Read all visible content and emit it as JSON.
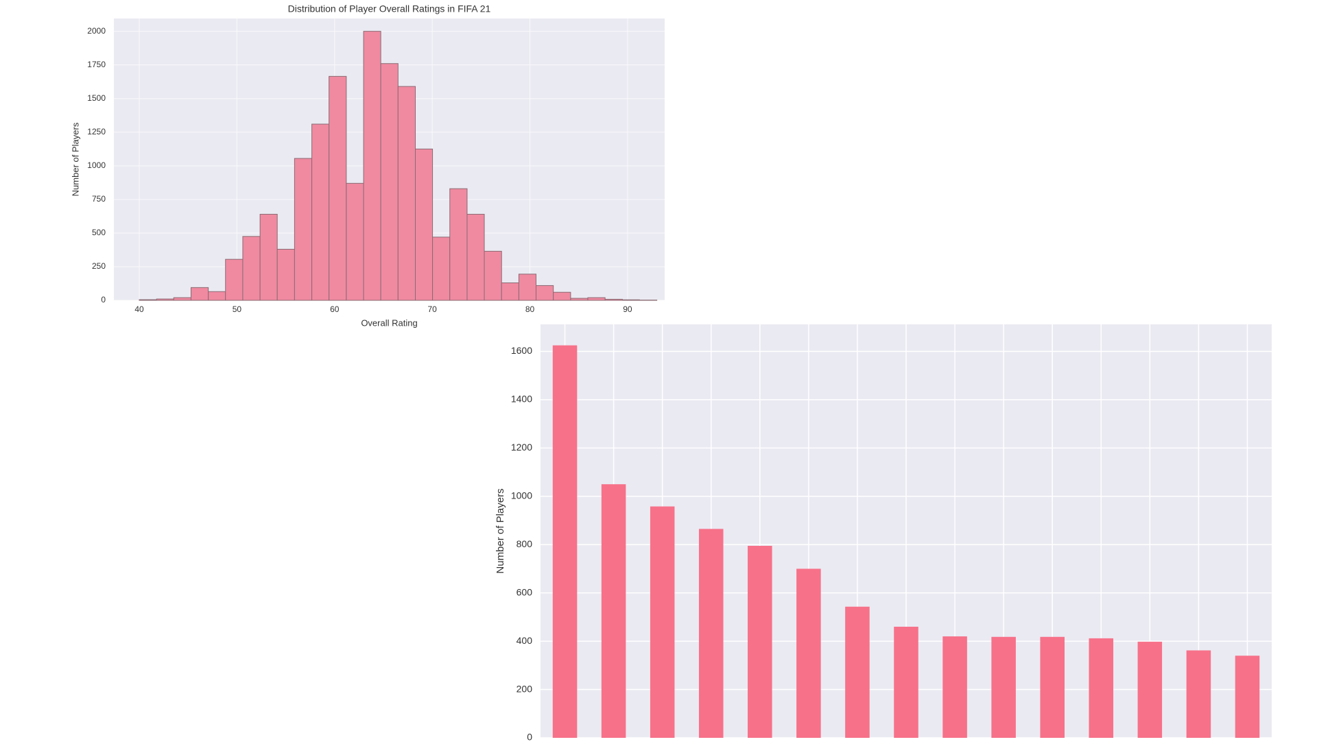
{
  "chart_data": [
    {
      "type": "histogram",
      "title": "Distribution of Player Overall Ratings in FIFA 21",
      "xlabel": "Overall Rating",
      "ylabel": "Number of Players",
      "bins": [
        40,
        41.77,
        43.53,
        45.3,
        47.07,
        48.83,
        50.6,
        52.37,
        54.13,
        55.9,
        57.67,
        59.43,
        61.2,
        62.97,
        64.73,
        66.5,
        68.27,
        70.03,
        71.8,
        73.57,
        75.33,
        77.1,
        78.87,
        80.63,
        82.4,
        84.17,
        85.93,
        87.7,
        89.47,
        91.23,
        93
      ],
      "counts": [
        5,
        10,
        20,
        95,
        65,
        305,
        475,
        640,
        380,
        1055,
        1310,
        1665,
        870,
        2000,
        1760,
        1590,
        1125,
        470,
        830,
        640,
        365,
        130,
        195,
        110,
        60,
        15,
        20,
        8,
        4,
        2
      ],
      "color": "#f08aa1",
      "edgecolor": "#8a6a72",
      "xlim": [
        37.4,
        93.8
      ],
      "xticks": [
        40,
        50,
        60,
        70,
        80,
        90
      ],
      "ylim": [
        0,
        2095
      ],
      "yticks": [
        0,
        250,
        500,
        750,
        1000,
        1250,
        1500,
        1750,
        2000
      ],
      "grid": true
    },
    {
      "type": "bar",
      "ylabel": "Number of Players",
      "categories": [
        null,
        null,
        null,
        null,
        null,
        null,
        null,
        null,
        null,
        null,
        null,
        null,
        null,
        null,
        null
      ],
      "values": [
        1625,
        1050,
        958,
        865,
        795,
        700,
        543,
        460,
        420,
        418,
        418,
        412,
        398,
        362,
        340
      ],
      "color": "#f77189",
      "ylim": [
        0,
        1712
      ],
      "yticks": [
        0,
        200,
        400,
        600,
        800,
        1000,
        1200,
        1400,
        1600
      ],
      "grid": true
    }
  ]
}
